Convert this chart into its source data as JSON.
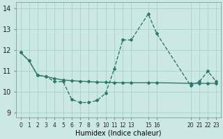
{
  "xlabel": "Humidex (Indice chaleur)",
  "bg_color": "#cce8e4",
  "line_color": "#2d7a6c",
  "grid_color": "#aacfc9",
  "xlim": [
    -0.5,
    23.5
  ],
  "ylim": [
    8.8,
    14.3
  ],
  "yticks": [
    9,
    10,
    11,
    12,
    13,
    14
  ],
  "xtick_positions": [
    0,
    1,
    2,
    3,
    4,
    5,
    6,
    7,
    8,
    9,
    10,
    11,
    12,
    13,
    15,
    16,
    20,
    21,
    22,
    23
  ],
  "xtick_labels": [
    "0",
    "1",
    "2",
    "3",
    "4",
    "5",
    "6",
    "7",
    "8",
    "9",
    "10",
    "11",
    "12",
    "13",
    "15",
    "16",
    "20",
    "21",
    "22",
    "23"
  ],
  "line_dashed_x": [
    0,
    1,
    2,
    3,
    4,
    5,
    6,
    7,
    8,
    9,
    10,
    11,
    12,
    13,
    15,
    16,
    20,
    21,
    22,
    23
  ],
  "line_dashed_y": [
    11.9,
    11.5,
    10.8,
    10.75,
    10.5,
    10.5,
    9.65,
    9.5,
    9.5,
    9.6,
    9.95,
    11.1,
    12.5,
    12.5,
    13.75,
    12.8,
    10.3,
    10.5,
    11.0,
    10.5
  ],
  "line_solid_x": [
    0,
    1,
    2,
    3,
    4,
    5,
    6,
    7,
    8,
    9,
    10,
    11,
    12,
    13,
    15,
    16,
    20,
    21,
    22,
    23
  ],
  "line_solid_y": [
    11.9,
    11.5,
    10.8,
    10.75,
    10.65,
    10.58,
    10.55,
    10.52,
    10.5,
    10.48,
    10.47,
    10.46,
    10.45,
    10.45,
    10.45,
    10.45,
    10.42,
    10.42,
    10.42,
    10.42
  ]
}
